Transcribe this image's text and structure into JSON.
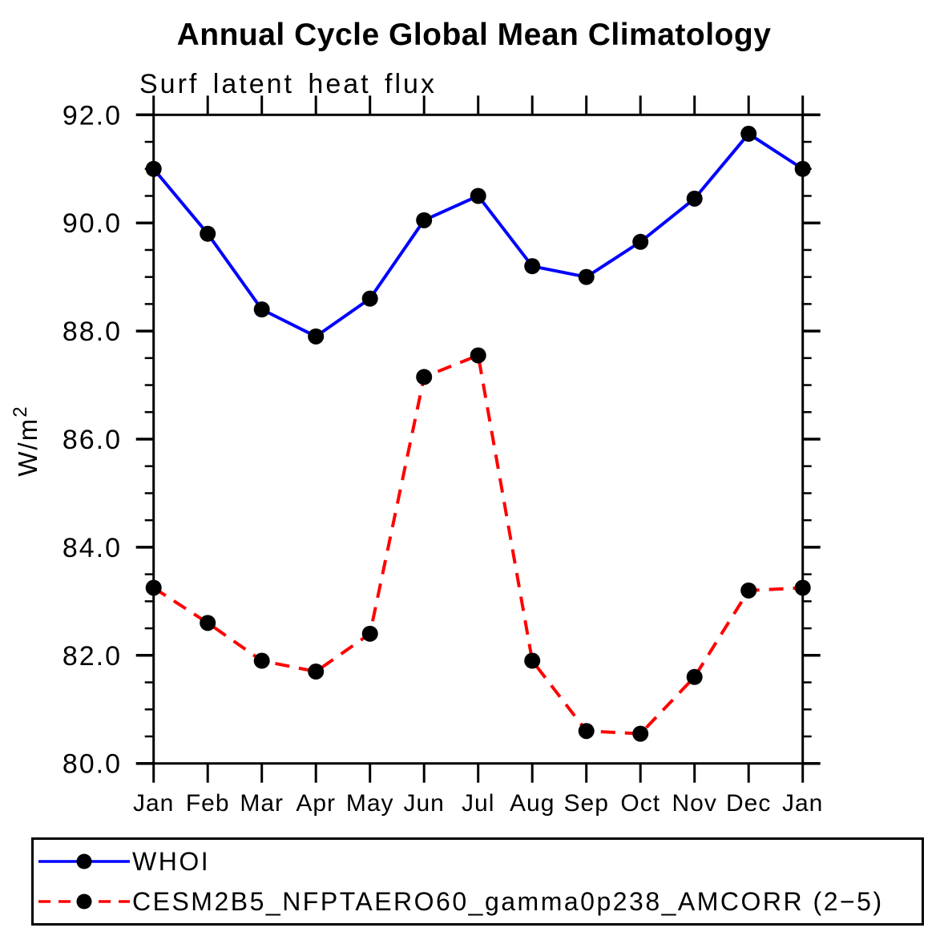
{
  "chart_data": {
    "type": "line",
    "title": "Annual Cycle Global Mean Climatology",
    "subtitle": "Surf latent heat flux",
    "ylabel": "W/m²",
    "ylabel_base": "W/m",
    "ylabel_exp": "2",
    "xlabel": "",
    "categories": [
      "Jan",
      "Feb",
      "Mar",
      "Apr",
      "May",
      "Jun",
      "Jul",
      "Aug",
      "Sep",
      "Oct",
      "Nov",
      "Dec",
      "Jan"
    ],
    "ylim": [
      80.0,
      92.0
    ],
    "y_major_step": 2.0,
    "y_minor_step": 0.5,
    "y_tick_format_decimals": 1,
    "grid": false,
    "legend_position": "bottom-box",
    "axis_color": "#000000",
    "marker_color": "#000000",
    "series": [
      {
        "name": "WHOI",
        "color": "#0000ff",
        "style": "solid",
        "marker": "filled-circle",
        "values": [
          91.0,
          89.8,
          88.4,
          87.9,
          88.6,
          90.05,
          90.5,
          89.2,
          89.0,
          89.65,
          90.45,
          91.65,
          91.0
        ]
      },
      {
        "name": "CESM2B5_NFPTAERO60_gamma0p238_AMCORR (2−5)",
        "color": "#ff0000",
        "style": "dashed",
        "marker": "filled-circle",
        "values": [
          83.25,
          82.6,
          81.9,
          81.7,
          82.4,
          87.15,
          87.55,
          81.9,
          80.6,
          80.55,
          81.6,
          83.2,
          83.25
        ]
      }
    ]
  }
}
